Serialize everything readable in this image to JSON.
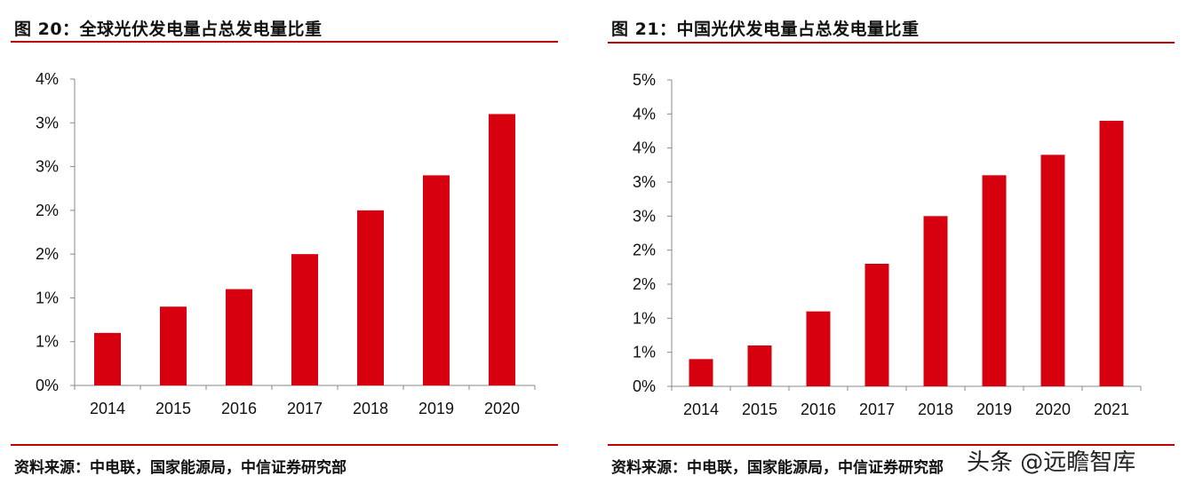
{
  "charts": [
    {
      "title": "图 20：全球光伏发电量占总发电量比重",
      "source": "资料来源：中电联，国家能源局，中信证券研究部"
    },
    {
      "title": "图 21：中国光伏发电量占总发电量比重",
      "source": "资料来源：中电联，国家能源局，中信证券研究部"
    }
  ],
  "watermark": "头条 @远瞻智库",
  "colors": {
    "bar": "#d7000f",
    "rule": "#c00000",
    "axis": "#888888"
  },
  "chart_data": [
    {
      "type": "bar",
      "title": "图 20：全球光伏发电量占总发电量比重",
      "categories": [
        "2014",
        "2015",
        "2016",
        "2017",
        "2018",
        "2019",
        "2020"
      ],
      "values": [
        0.6,
        0.9,
        1.1,
        1.5,
        2.0,
        2.4,
        3.1
      ],
      "ylim": [
        0,
        3.5
      ],
      "yticks": [
        0,
        0.5,
        1.0,
        1.5,
        2.0,
        2.5,
        3.0,
        3.5
      ],
      "ytick_labels": [
        "0%",
        "1%",
        "1%",
        "2%",
        "2%",
        "3%",
        "3%",
        "4%"
      ],
      "grid": false
    },
    {
      "type": "bar",
      "title": "图 21：中国光伏发电量占总发电量比重",
      "categories": [
        "2014",
        "2015",
        "2016",
        "2017",
        "2018",
        "2019",
        "2020",
        "2021"
      ],
      "values": [
        0.4,
        0.6,
        1.1,
        1.8,
        2.5,
        3.1,
        3.4,
        3.9
      ],
      "ylim": [
        0,
        4.5
      ],
      "yticks": [
        0,
        0.5,
        1.0,
        1.5,
        2.0,
        2.5,
        3.0,
        3.5,
        4.0,
        4.5
      ],
      "ytick_labels": [
        "0%",
        "1%",
        "1%",
        "2%",
        "2%",
        "3%",
        "3%",
        "4%",
        "4%",
        "5%"
      ],
      "grid": false
    }
  ]
}
